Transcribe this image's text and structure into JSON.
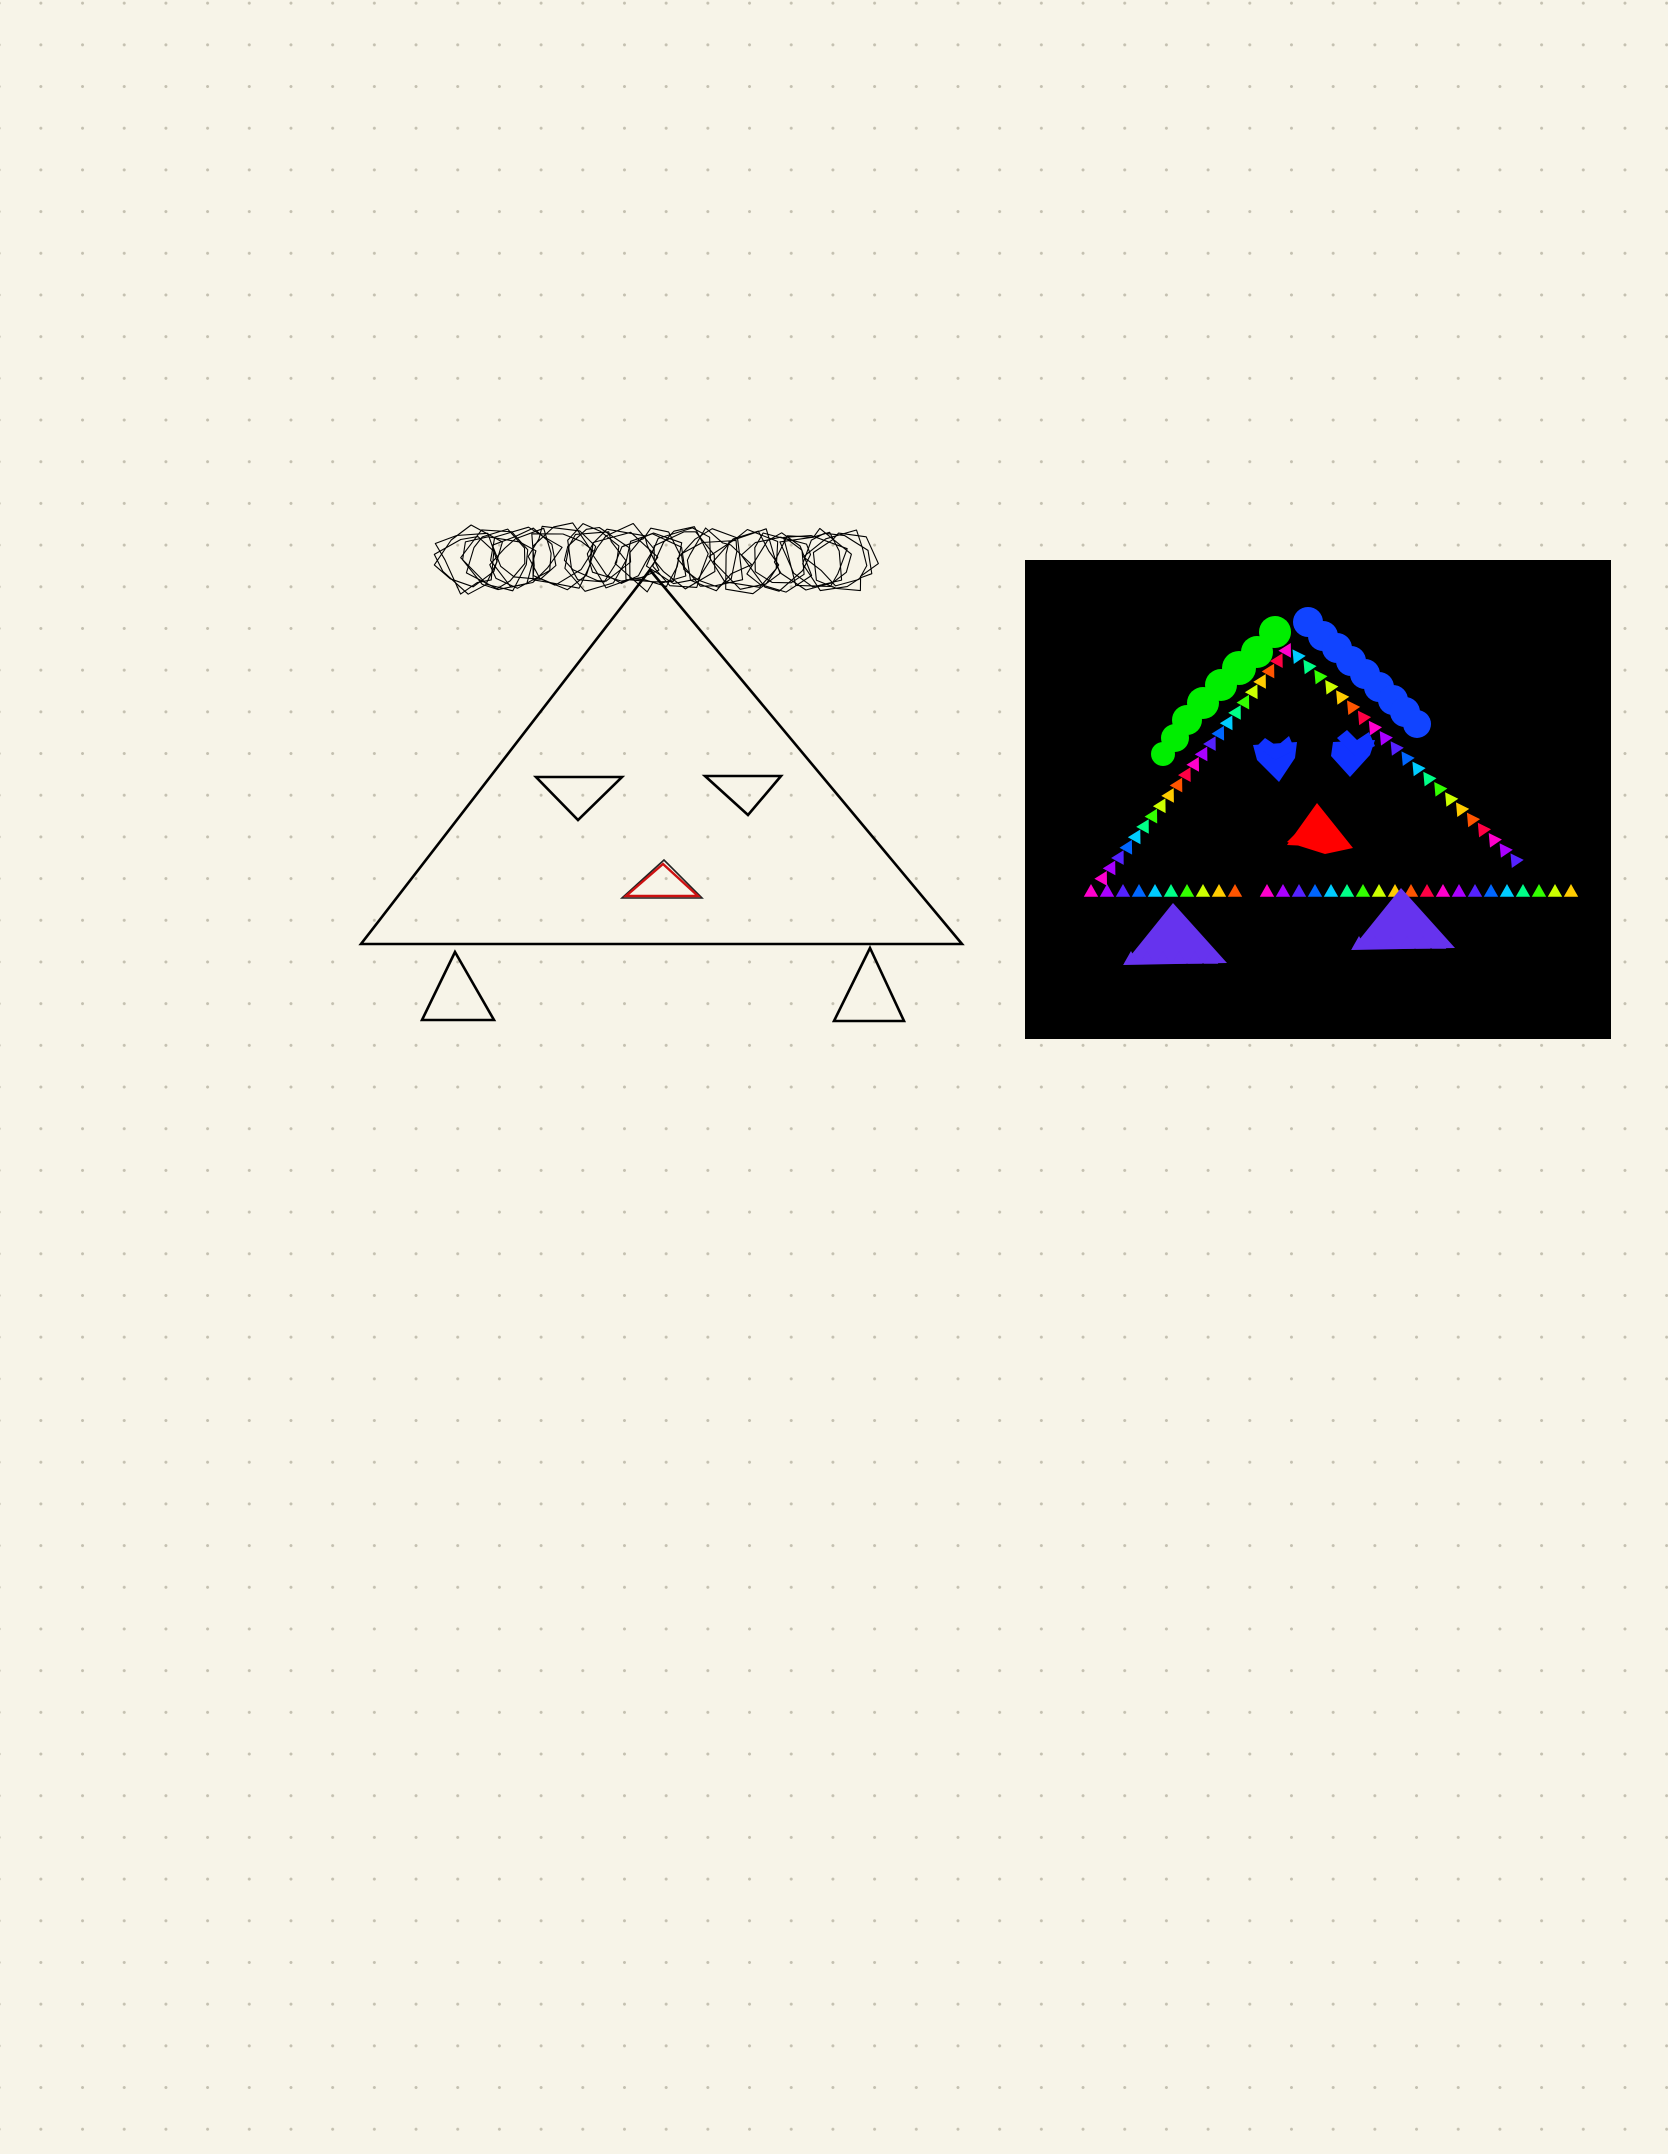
{
  "canvas": {
    "background_color": "#f7f4e8",
    "dot_color": "#c4c0b0",
    "background_pattern": "dot-grid"
  },
  "drawing": {
    "stroke_color": "#000000",
    "mouth_color": "#cc1111",
    "shapes": [
      "scribble-halo",
      "body-triangle",
      "left-eye",
      "right-eye",
      "mouth",
      "left-foot",
      "right-foot"
    ]
  },
  "image": {
    "background_color": "#000000",
    "palette": [
      "#00ff00",
      "#1144ff",
      "#ff0000",
      "#6633ee",
      "#ff00ff",
      "#00ccff",
      "#ffff00"
    ]
  }
}
